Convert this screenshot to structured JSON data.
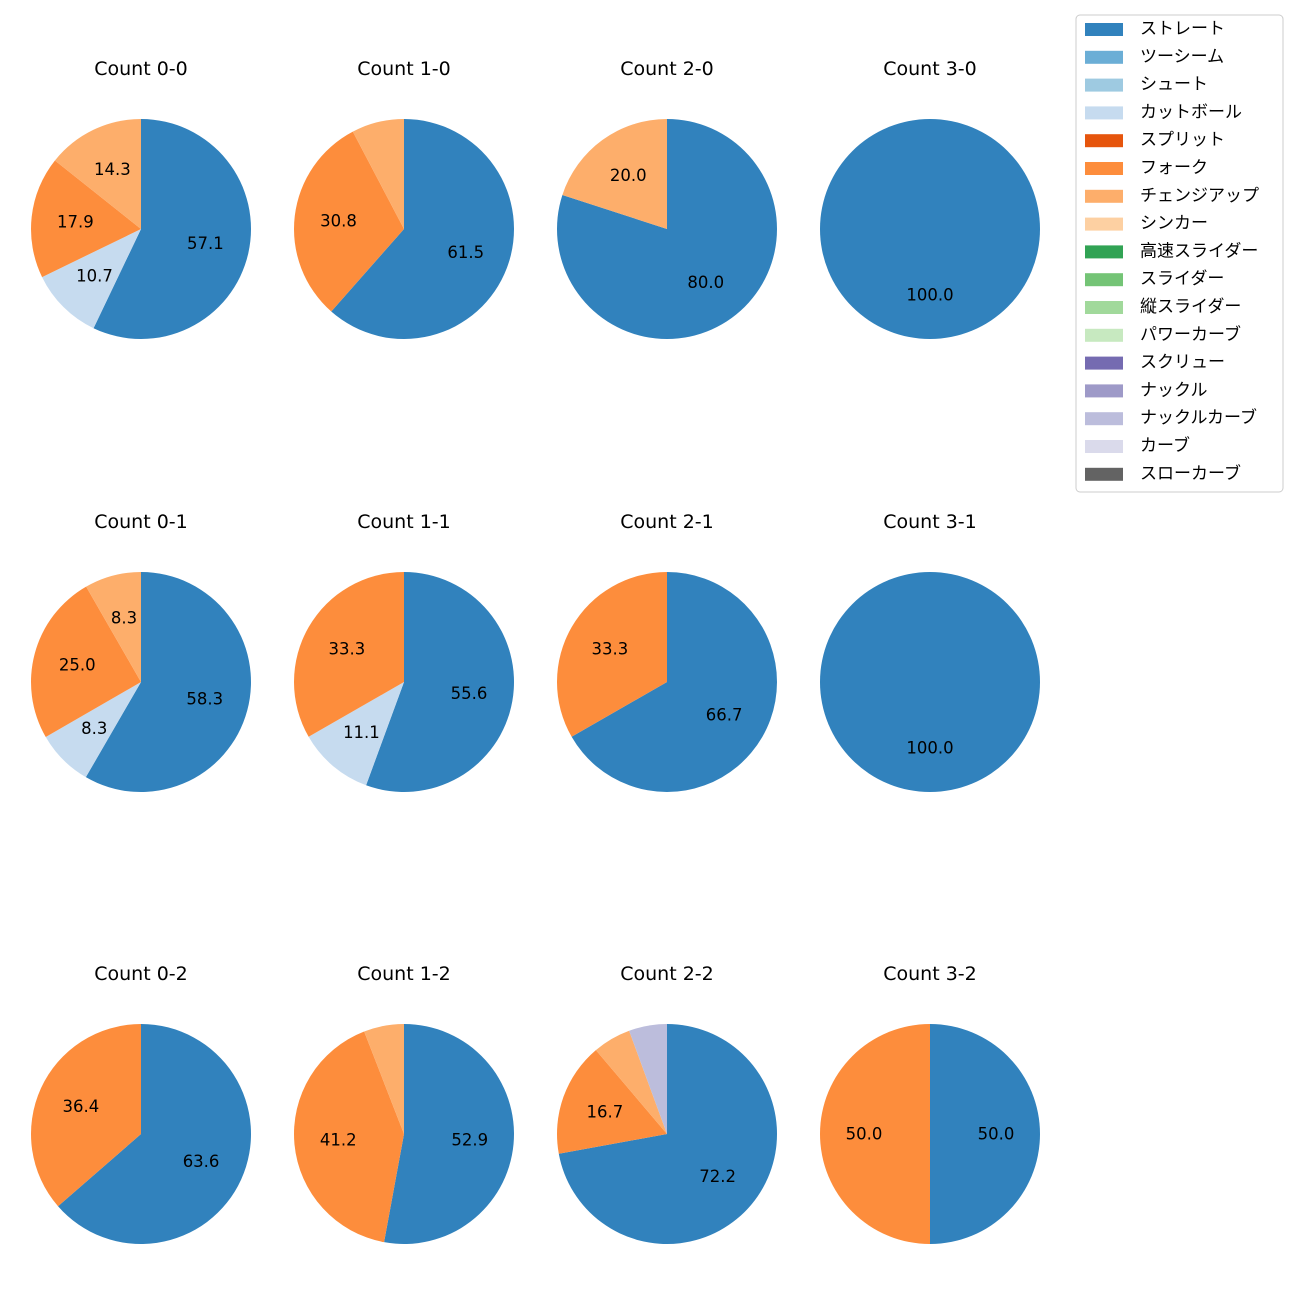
{
  "legend": {
    "items": [
      {
        "name": "ストレート",
        "color": "#3182bd"
      },
      {
        "name": "ツーシーム",
        "color": "#6baed6"
      },
      {
        "name": "シュート",
        "color": "#9ecae1"
      },
      {
        "name": "カットボール",
        "color": "#c6dbef"
      },
      {
        "name": "スプリット",
        "color": "#e6550d"
      },
      {
        "name": "フォーク",
        "color": "#fd8d3c"
      },
      {
        "name": "チェンジアップ",
        "color": "#fdae6b"
      },
      {
        "name": "シンカー",
        "color": "#fdd0a2"
      },
      {
        "name": "高速スライダー",
        "color": "#31a354"
      },
      {
        "name": "スライダー",
        "color": "#74c476"
      },
      {
        "name": "縦スライダー",
        "color": "#a1d99b"
      },
      {
        "name": "パワーカーブ",
        "color": "#c7e9c0"
      },
      {
        "name": "スクリュー",
        "color": "#756bb1"
      },
      {
        "name": "ナックル",
        "color": "#9e9ac8"
      },
      {
        "name": "ナックルカーブ",
        "color": "#bcbddc"
      },
      {
        "name": "カーブ",
        "color": "#dadaeb"
      },
      {
        "name": "スローカーブ",
        "color": "#636363"
      }
    ]
  },
  "chart_data": [
    {
      "type": "pie",
      "title": "Count 0-0",
      "slices": [
        {
          "label": "ストレート",
          "value": 57.1,
          "text": "57.1"
        },
        {
          "label": "カットボール",
          "value": 10.7,
          "text": "10.7"
        },
        {
          "label": "フォーク",
          "value": 17.9,
          "text": "17.9"
        },
        {
          "label": "チェンジアップ",
          "value": 14.3,
          "text": "14.3"
        }
      ]
    },
    {
      "type": "pie",
      "title": "Count 1-0",
      "slices": [
        {
          "label": "ストレート",
          "value": 61.5,
          "text": "61.5"
        },
        {
          "label": "フォーク",
          "value": 30.8,
          "text": "30.8"
        },
        {
          "label": "チェンジアップ",
          "value": 7.7,
          "text": ""
        }
      ]
    },
    {
      "type": "pie",
      "title": "Count 2-0",
      "slices": [
        {
          "label": "ストレート",
          "value": 80.0,
          "text": "80.0"
        },
        {
          "label": "チェンジアップ",
          "value": 20.0,
          "text": "20.0"
        }
      ]
    },
    {
      "type": "pie",
      "title": "Count 3-0",
      "slices": [
        {
          "label": "ストレート",
          "value": 100.0,
          "text": "100.0"
        }
      ]
    },
    {
      "type": "pie",
      "title": "Count 0-1",
      "slices": [
        {
          "label": "ストレート",
          "value": 58.3,
          "text": "58.3"
        },
        {
          "label": "カットボール",
          "value": 8.3,
          "text": "8.3"
        },
        {
          "label": "フォーク",
          "value": 25.0,
          "text": "25.0"
        },
        {
          "label": "チェンジアップ",
          "value": 8.3,
          "text": "8.3"
        }
      ]
    },
    {
      "type": "pie",
      "title": "Count 1-1",
      "slices": [
        {
          "label": "ストレート",
          "value": 55.6,
          "text": "55.6"
        },
        {
          "label": "カットボール",
          "value": 11.1,
          "text": "11.1"
        },
        {
          "label": "フォーク",
          "value": 33.3,
          "text": "33.3"
        }
      ]
    },
    {
      "type": "pie",
      "title": "Count 2-1",
      "slices": [
        {
          "label": "ストレート",
          "value": 66.7,
          "text": "66.7"
        },
        {
          "label": "フォーク",
          "value": 33.3,
          "text": "33.3"
        }
      ]
    },
    {
      "type": "pie",
      "title": "Count 3-1",
      "slices": [
        {
          "label": "ストレート",
          "value": 100.0,
          "text": "100.0"
        }
      ]
    },
    {
      "type": "pie",
      "title": "Count 0-2",
      "slices": [
        {
          "label": "ストレート",
          "value": 63.6,
          "text": "63.6"
        },
        {
          "label": "フォーク",
          "value": 36.4,
          "text": "36.4"
        }
      ]
    },
    {
      "type": "pie",
      "title": "Count 1-2",
      "slices": [
        {
          "label": "ストレート",
          "value": 52.9,
          "text": "52.9"
        },
        {
          "label": "フォーク",
          "value": 41.2,
          "text": "41.2"
        },
        {
          "label": "チェンジアップ",
          "value": 5.9,
          "text": ""
        }
      ]
    },
    {
      "type": "pie",
      "title": "Count 2-2",
      "slices": [
        {
          "label": "ストレート",
          "value": 72.2,
          "text": "72.2"
        },
        {
          "label": "フォーク",
          "value": 16.7,
          "text": "16.7"
        },
        {
          "label": "チェンジアップ",
          "value": 5.6,
          "text": ""
        },
        {
          "label": "ナックルカーブ",
          "value": 5.6,
          "text": ""
        }
      ]
    },
    {
      "type": "pie",
      "title": "Count 3-2",
      "slices": [
        {
          "label": "ストレート",
          "value": 50.0,
          "text": "50.0"
        },
        {
          "label": "フォーク",
          "value": 50.0,
          "text": "50.0"
        }
      ]
    }
  ]
}
